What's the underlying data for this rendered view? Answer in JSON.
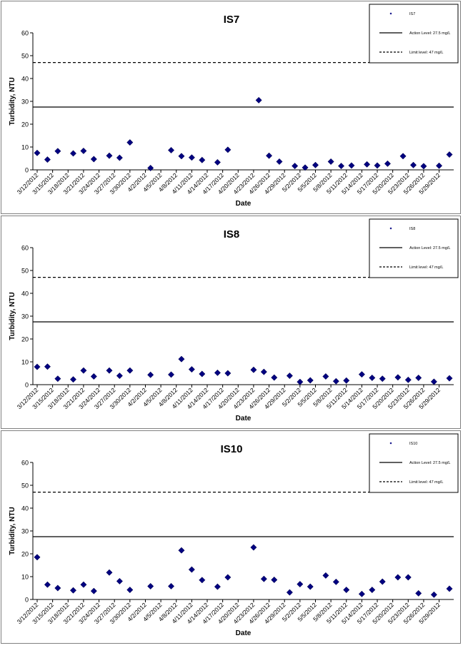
{
  "chart_data": [
    {
      "type": "scatter",
      "title": "IS7",
      "xlabel": "Date",
      "ylabel": "Turbidity, NTU",
      "ylim": [
        0,
        60
      ],
      "yticks": [
        0,
        10,
        20,
        30,
        40,
        50,
        60
      ],
      "x_tick_labels": [
        "3/12/2012",
        "3/15/2012",
        "3/18/2012",
        "3/21/2012",
        "3/24/2012",
        "3/27/2012",
        "3/30/2012",
        "4/2/2012",
        "4/5/2012",
        "4/8/2012",
        "4/11/2012",
        "4/14/2012",
        "4/17/2012",
        "4/20/2012",
        "4/23/2012",
        "4/26/2012",
        "4/29/2012",
        "5/2/2012",
        "5/5/2012",
        "5/8/2012",
        "5/11/2012",
        "5/14/2012",
        "5/17/2012",
        "5/20/2012",
        "5/23/2012",
        "5/26/2012",
        "5/29/2012"
      ],
      "xlim": [
        "3/12/2012",
        "5/31/2012"
      ],
      "legend_position": "top-right",
      "series": [
        {
          "name": "IS7",
          "marker": "diamond",
          "color": "#000080",
          "x": [
            "3/12/2012",
            "3/14/2012",
            "3/16/2012",
            "3/19/2012",
            "3/21/2012",
            "3/23/2012",
            "3/26/2012",
            "3/28/2012",
            "3/30/2012",
            "4/3/2012",
            "4/7/2012",
            "4/9/2012",
            "4/11/2012",
            "4/13/2012",
            "4/16/2012",
            "4/18/2012",
            "4/24/2012",
            "4/26/2012",
            "4/28/2012",
            "5/1/2012",
            "5/3/2012",
            "5/5/2012",
            "5/8/2012",
            "5/10/2012",
            "5/12/2012",
            "5/15/2012",
            "5/17/2012",
            "5/19/2012",
            "5/22/2012",
            "5/24/2012",
            "5/26/2012",
            "5/29/2012",
            "5/31/2012"
          ],
          "y": [
            7.4,
            4.5,
            8.2,
            7.2,
            8.3,
            4.7,
            6.2,
            5.3,
            12,
            0.8,
            8.6,
            6,
            5.4,
            4.3,
            3.3,
            8.8,
            30.5,
            6.2,
            3.6,
            1.7,
            1,
            2.1,
            3.6,
            1.7,
            1.9,
            2.4,
            1.9,
            2.7,
            6,
            2.1,
            1.6,
            1.8,
            6.7
          ]
        },
        {
          "name": "Action Level: 27.5 mg/L",
          "line": "solid",
          "y_constant": 27.5
        },
        {
          "name": "Limit level: 47 mg/L",
          "line": "dashed",
          "y_constant": 47
        }
      ]
    },
    {
      "type": "scatter",
      "title": "IS8",
      "xlabel": "Date",
      "ylabel": "Turbidity, NTU",
      "ylim": [
        0,
        60
      ],
      "yticks": [
        0,
        10,
        20,
        30,
        40,
        50,
        60
      ],
      "x_tick_labels": [
        "3/12/2012",
        "3/15/2012",
        "3/18/2012",
        "3/21/2012",
        "3/24/2012",
        "3/27/2012",
        "3/30/2012",
        "4/2/2012",
        "4/5/2012",
        "4/8/2012",
        "4/11/2012",
        "4/14/2012",
        "4/17/2012",
        "4/20/2012",
        "4/23/2012",
        "4/26/2012",
        "4/29/2012",
        "5/2/2012",
        "5/5/2012",
        "5/8/2012",
        "5/11/2012",
        "5/14/2012",
        "5/17/2012",
        "5/20/2012",
        "5/23/2012",
        "5/26/2012",
        "5/29/2012"
      ],
      "xlim": [
        "3/12/2012",
        "5/31/2012"
      ],
      "legend_position": "top-right",
      "series": [
        {
          "name": "IS8",
          "marker": "diamond",
          "color": "#000080",
          "x": [
            "3/12/2012",
            "3/14/2012",
            "3/16/2012",
            "3/19/2012",
            "3/21/2012",
            "3/23/2012",
            "3/26/2012",
            "3/28/2012",
            "3/30/2012",
            "4/3/2012",
            "4/7/2012",
            "4/9/2012",
            "4/11/2012",
            "4/13/2012",
            "4/16/2012",
            "4/18/2012",
            "4/23/2012",
            "4/25/2012",
            "4/27/2012",
            "4/30/2012",
            "5/2/2012",
            "5/4/2012",
            "5/7/2012",
            "5/9/2012",
            "5/11/2012",
            "5/14/2012",
            "5/16/2012",
            "5/18/2012",
            "5/21/2012",
            "5/23/2012",
            "5/25/2012",
            "5/28/2012",
            "5/31/2012"
          ],
          "y": [
            7.8,
            7.9,
            2.6,
            2.3,
            6.2,
            3.6,
            6.2,
            3.9,
            6.2,
            4.3,
            4.4,
            11.2,
            6.7,
            4.7,
            5.2,
            5,
            6.5,
            5.6,
            3.1,
            3.9,
            1.2,
            1.9,
            3.6,
            1.5,
            1.8,
            4.5,
            3,
            2.6,
            3.2,
            2.1,
            3,
            1.3,
            2.8
          ]
        },
        {
          "name": "Action Level: 27.5 mg/L",
          "line": "solid",
          "y_constant": 27.5
        },
        {
          "name": "Limit level: 47 mg/L",
          "line": "dashed",
          "y_constant": 47
        }
      ]
    },
    {
      "type": "scatter",
      "title": "IS10",
      "xlabel": "Date",
      "ylabel": "Turbidity, NTU",
      "ylim": [
        0,
        60
      ],
      "yticks": [
        0,
        10,
        20,
        30,
        40,
        50,
        60
      ],
      "x_tick_labels": [
        "3/12/2012",
        "3/15/2012",
        "3/18/2012",
        "3/21/2012",
        "3/24/2012",
        "3/27/2012",
        "3/30/2012",
        "4/2/2012",
        "4/5/2012",
        "4/8/2012",
        "4/11/2012",
        "4/14/2012",
        "4/17/2012",
        "4/20/2012",
        "4/23/2012",
        "4/26/2012",
        "4/29/2012",
        "5/2/2012",
        "5/5/2012",
        "5/8/2012",
        "5/11/2012",
        "5/14/2012",
        "5/17/2012",
        "5/20/2012",
        "5/23/2012",
        "5/26/2012",
        "5/29/2012"
      ],
      "xlim": [
        "3/12/2012",
        "5/31/2012"
      ],
      "legend_position": "top-right",
      "series": [
        {
          "name": "IS10",
          "marker": "diamond",
          "color": "#000080",
          "x": [
            "3/12/2012",
            "3/14/2012",
            "3/16/2012",
            "3/19/2012",
            "3/21/2012",
            "3/23/2012",
            "3/26/2012",
            "3/28/2012",
            "3/30/2012",
            "4/3/2012",
            "4/7/2012",
            "4/9/2012",
            "4/11/2012",
            "4/13/2012",
            "4/16/2012",
            "4/18/2012",
            "4/23/2012",
            "4/25/2012",
            "4/27/2012",
            "4/30/2012",
            "5/2/2012",
            "5/4/2012",
            "5/7/2012",
            "5/9/2012",
            "5/11/2012",
            "5/14/2012",
            "5/16/2012",
            "5/18/2012",
            "5/21/2012",
            "5/23/2012",
            "5/25/2012",
            "5/28/2012",
            "5/31/2012"
          ],
          "y": [
            18.5,
            6.5,
            5,
            4,
            6.5,
            3.7,
            11.8,
            8,
            4.2,
            5.8,
            5.8,
            21.5,
            13.1,
            8.5,
            5.6,
            9.7,
            22.8,
            9,
            8.6,
            3.1,
            6.7,
            5.6,
            10.5,
            7.7,
            4.2,
            2.4,
            4.2,
            7.8,
            9.7,
            9.7,
            2.7,
            2.1,
            4.7
          ]
        },
        {
          "name": "Action Level: 27.5 mg/L",
          "line": "solid",
          "y_constant": 27.5
        },
        {
          "name": "Limit level: 47 mg/L",
          "line": "dashed",
          "y_constant": 47
        }
      ]
    }
  ]
}
